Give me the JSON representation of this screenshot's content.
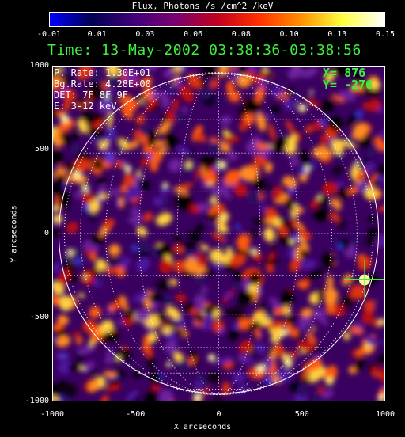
{
  "colorbar": {
    "title": "Flux, Photons /s /cm^2 /keV",
    "ticks": [
      "-0.01",
      "0.01",
      "0.03",
      "0.06",
      "0.08",
      "0.10",
      "0.13",
      "0.15"
    ],
    "colors": [
      "#0000ff",
      "#000050",
      "#40007a",
      "#7a0070",
      "#c00020",
      "#ff3000",
      "#ff9000",
      "#ffff40",
      "#ffffff"
    ]
  },
  "time_label": "Time: 13-May-2002 03:38:36-03:38:56",
  "info": {
    "p_rate": "P. Rate:  1.30E+01",
    "bg_rate": "Bg.Rate:  4.28E+00",
    "det": "DET: 7F 8F 9F",
    "energy": "E: 3-12 keV"
  },
  "cursor": {
    "x_label": "X=  876",
    "y_label": "Y= -276",
    "x": 876,
    "y": -276
  },
  "axes": {
    "xlabel": "X arcseconds",
    "ylabel": "Y arcseconds",
    "xticks": [
      "-1000",
      "-500",
      "0",
      "500",
      "1000"
    ],
    "yticks": [
      "1000",
      "500",
      "0",
      "-500",
      "-1000"
    ],
    "xlim": [
      -1000,
      1000
    ],
    "ylim": [
      -1000,
      1000
    ]
  }
}
